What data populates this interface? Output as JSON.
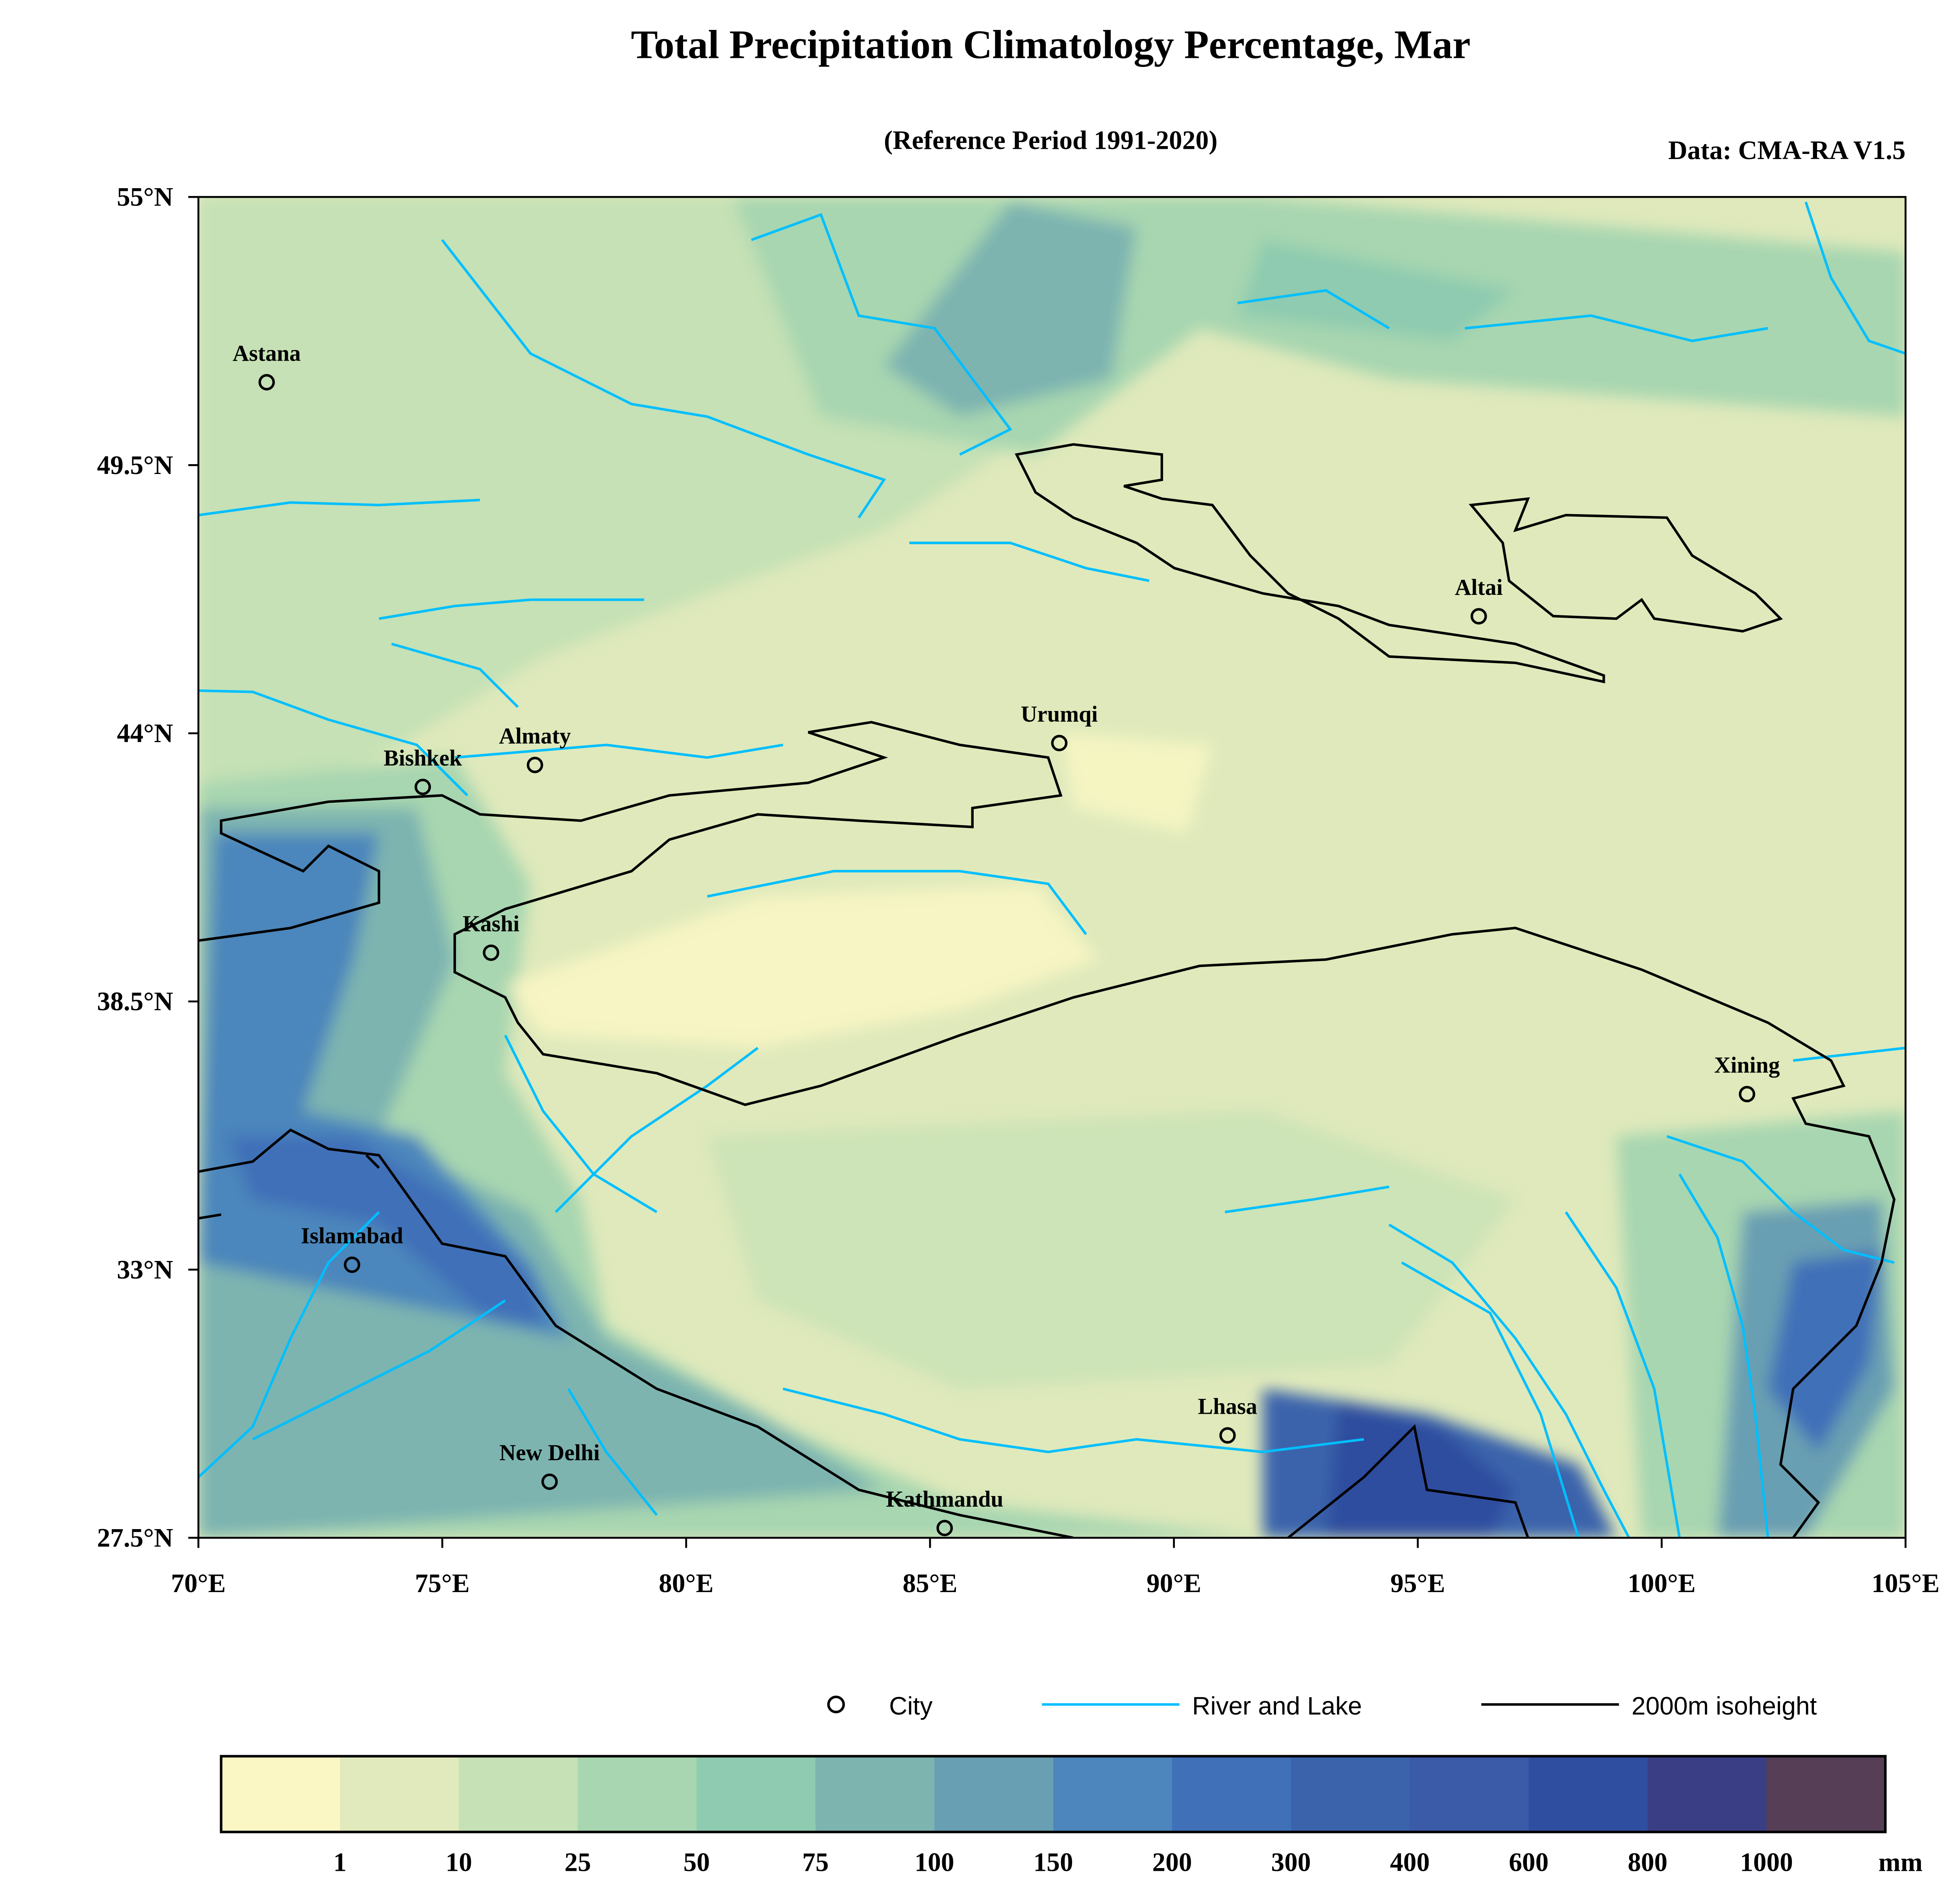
{
  "title": "Total Precipitation Climatology Percentage, Mar",
  "subtitle": "(Reference Period 1991-2020)",
  "source": "Data: CMA-RA V1.5",
  "map": {
    "lon_range": [
      70,
      105
    ],
    "lat_range": [
      27.5,
      55
    ],
    "lon_ticks": [
      70,
      75,
      80,
      85,
      90,
      95,
      100,
      105
    ],
    "lon_labels": [
      "70°E",
      "75°E",
      "80°E",
      "85°E",
      "90°E",
      "95°E",
      "100°E",
      "105°E"
    ],
    "lat_ticks": [
      55,
      49.5,
      44,
      38.5,
      33,
      27.5
    ],
    "lat_labels": [
      "55°N",
      "49.5°N",
      "44°N",
      "38.5°N",
      "33°N",
      "27.5°N"
    ],
    "cities": [
      {
        "name": "Astana",
        "lon": 71.4,
        "lat": 51.2
      },
      {
        "name": "Almaty",
        "lon": 76.9,
        "lat": 43.35
      },
      {
        "name": "Bishkek",
        "lon": 74.6,
        "lat": 42.9
      },
      {
        "name": "Urumqi",
        "lon": 87.65,
        "lat": 43.8
      },
      {
        "name": "Altai",
        "lon": 96.25,
        "lat": 46.4
      },
      {
        "name": "Kashi",
        "lon": 76.0,
        "lat": 39.5
      },
      {
        "name": "Xining",
        "lon": 101.75,
        "lat": 36.6
      },
      {
        "name": "Islamabad",
        "lon": 73.15,
        "lat": 33.1
      },
      {
        "name": "Lhasa",
        "lon": 91.1,
        "lat": 29.6
      },
      {
        "name": "New Delhi",
        "lon": 77.2,
        "lat": 28.65
      },
      {
        "name": "Kathmandu",
        "lon": 85.3,
        "lat": 27.7
      }
    ]
  },
  "legend": {
    "city": "City",
    "river": "River and Lake",
    "isoheight": "2000m isoheight",
    "river_color": "#00bfff",
    "isoheight_color": "#000000"
  },
  "colorbar": {
    "unit": "mm",
    "labels": [
      "1",
      "10",
      "25",
      "50",
      "75",
      "100",
      "150",
      "200",
      "300",
      "400",
      "600",
      "800",
      "1000"
    ],
    "colors": [
      "#faf7c4",
      "#e0eabc",
      "#c5e1b5",
      "#a7d6b0",
      "#8ecbb0",
      "#7db4b0",
      "#699fb2",
      "#4c86bc",
      "#3f70b8",
      "#3a63ac",
      "#3b5aa8",
      "#2f4e9f",
      "#3a3f85",
      "#563e57"
    ]
  }
}
